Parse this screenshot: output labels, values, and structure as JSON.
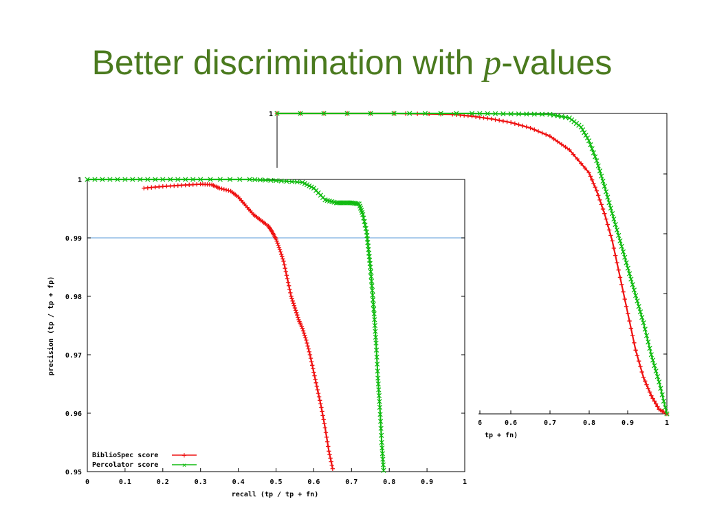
{
  "slide": {
    "title_before": "Better discrimination with ",
    "title_italic": "p",
    "title_after": "-values"
  },
  "chart_data": [
    {
      "type": "line",
      "title": "",
      "xlabel": "recall (tp / tp + fn)",
      "ylabel": "precision (tp / tp + fp)",
      "xlim": [
        0,
        1
      ],
      "ylim": [
        0.95,
        1
      ],
      "xticks": [
        "0",
        "0.1",
        "0.2",
        "0.3",
        "0.4",
        "0.5",
        "0.6",
        "0.7",
        "0.8",
        "0.9",
        "1"
      ],
      "yticks": [
        "0.95",
        "0.96",
        "0.97",
        "0.98",
        "0.99",
        "1"
      ],
      "grid": false,
      "legend": "bottom-left",
      "reference_line": {
        "y": 0.99,
        "color": "#79aee0"
      },
      "series": [
        {
          "name": "BiblioSpec score",
          "color": "#ee1111",
          "marker": "+",
          "x": [
            0.15,
            0.2,
            0.25,
            0.3,
            0.33,
            0.35,
            0.38,
            0.4,
            0.42,
            0.44,
            0.46,
            0.48,
            0.49,
            0.5,
            0.51,
            0.52,
            0.53,
            0.54,
            0.55,
            0.56,
            0.57,
            0.58,
            0.59,
            0.6,
            0.61,
            0.62,
            0.63,
            0.64,
            0.65
          ],
          "y": [
            0.9985,
            0.9988,
            0.999,
            0.9992,
            0.9991,
            0.9985,
            0.998,
            0.997,
            0.9955,
            0.994,
            0.993,
            0.992,
            0.991,
            0.9898,
            0.988,
            0.986,
            0.983,
            0.98,
            0.978,
            0.976,
            0.9745,
            0.9725,
            0.97,
            0.967,
            0.964,
            0.961,
            0.9575,
            0.9535,
            0.9505
          ]
        },
        {
          "name": "Percolator score",
          "color": "#11bb11",
          "marker": "x",
          "x": [
            0,
            0.1,
            0.2,
            0.3,
            0.43,
            0.5,
            0.57,
            0.6,
            0.63,
            0.66,
            0.68,
            0.7,
            0.72,
            0.73,
            0.74,
            0.745,
            0.75,
            0.755,
            0.76,
            0.765,
            0.77,
            0.775,
            0.78,
            0.785
          ],
          "y": [
            1,
            1,
            1,
            1,
            1,
            0.9998,
            0.9995,
            0.9985,
            0.9965,
            0.996,
            0.996,
            0.996,
            0.9958,
            0.994,
            0.991,
            0.988,
            0.985,
            0.981,
            0.977,
            0.972,
            0.966,
            0.961,
            0.955,
            0.9502
          ]
        }
      ]
    },
    {
      "type": "line",
      "title": "",
      "xlabel": "tp + fn)",
      "ylabel": "",
      "xlim": [
        0,
        1
      ],
      "xticks": [
        "6",
        "0.6",
        "0.7",
        "0.8",
        "0.9",
        "1"
      ],
      "yticks": [
        "1"
      ],
      "grid": false,
      "series": [
        {
          "color": "#ee1111",
          "marker": "+",
          "x": [
            0,
            0.3,
            0.45,
            0.5,
            0.55,
            0.6,
            0.65,
            0.7,
            0.75,
            0.8,
            0.82,
            0.84,
            0.86,
            0.88,
            0.9,
            0.92,
            0.94,
            0.96,
            0.98,
            1.0
          ],
          "y": [
            1,
            1,
            0.999,
            0.997,
            0.994,
            0.99,
            0.984,
            0.975,
            0.96,
            0.935,
            0.915,
            0.89,
            0.86,
            0.82,
            0.78,
            0.74,
            0.71,
            0.69,
            0.675,
            0.67
          ]
        },
        {
          "color": "#11bb11",
          "marker": "x",
          "x": [
            0,
            0.3,
            0.5,
            0.6,
            0.7,
            0.75,
            0.78,
            0.8,
            0.82,
            0.84,
            0.86,
            0.88,
            0.9,
            0.92,
            0.94,
            0.96,
            0.98,
            1.0
          ],
          "y": [
            1,
            1,
            1,
            0.9995,
            0.999,
            0.995,
            0.985,
            0.97,
            0.948,
            0.92,
            0.89,
            0.86,
            0.83,
            0.8,
            0.77,
            0.735,
            0.705,
            0.67
          ]
        }
      ]
    }
  ]
}
